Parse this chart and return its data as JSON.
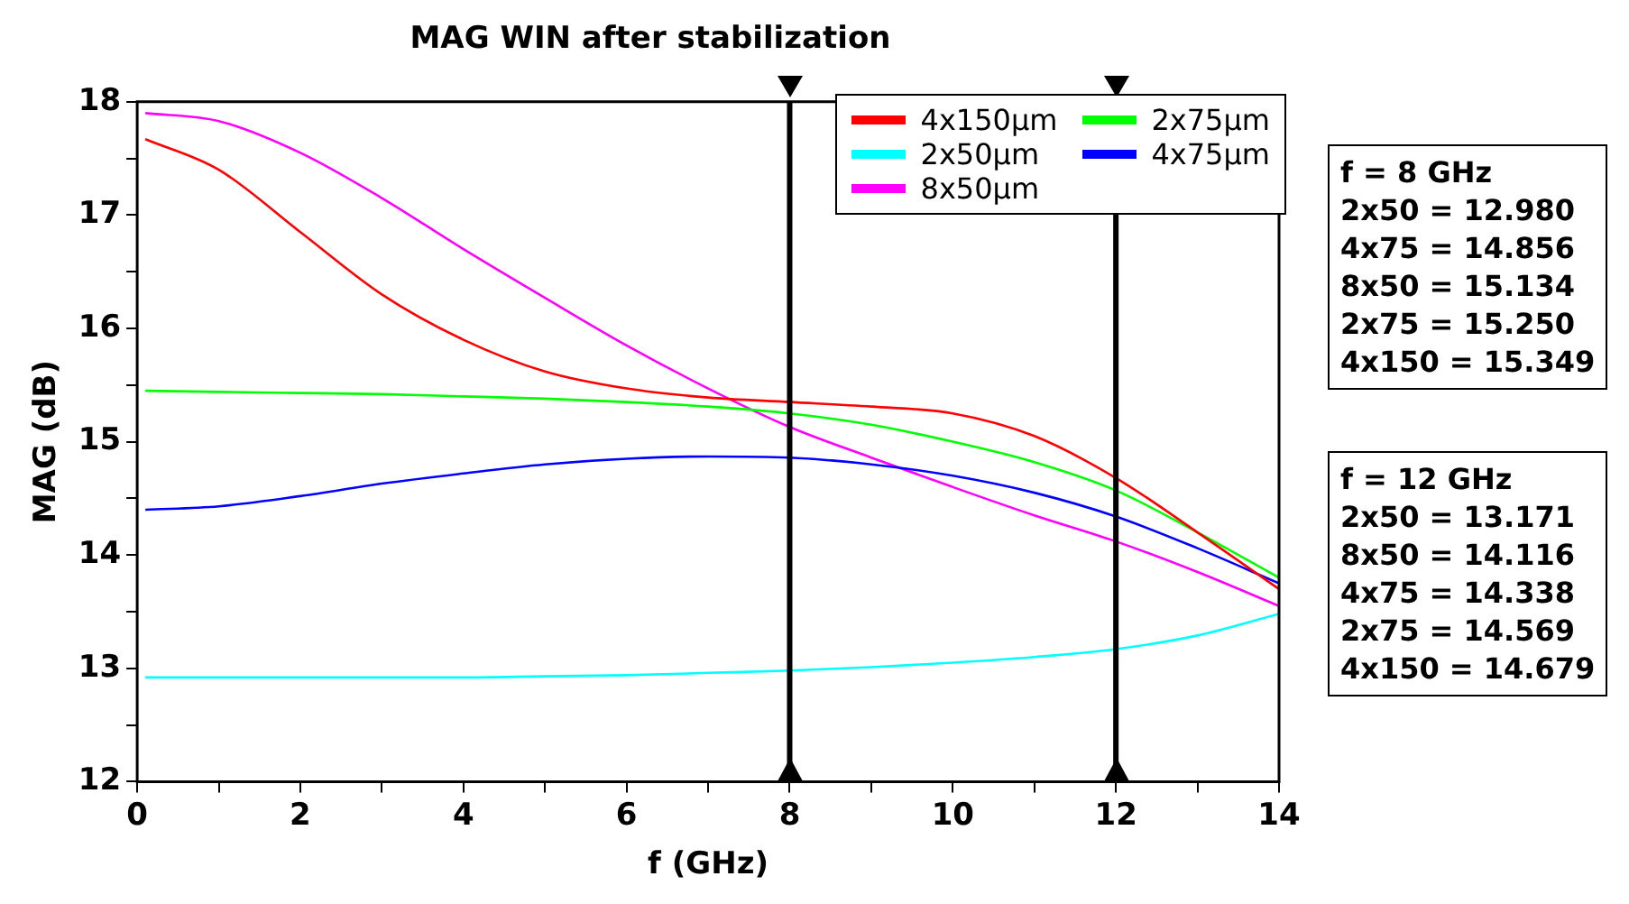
{
  "chart_data": {
    "type": "line",
    "title": "MAG WIN after stabilization",
    "xlabel": "f (GHz)",
    "ylabel": "MAG (dB)",
    "xlim": [
      0,
      14
    ],
    "xticks": [
      0,
      {
        "value": 1,
        "label": null
      },
      2,
      {
        "value": 3,
        "label": null
      },
      4,
      {
        "value": 5,
        "label": null
      },
      6,
      {
        "value": 7,
        "label": null
      },
      8,
      {
        "value": 9,
        "label": null
      },
      10,
      {
        "value": 11,
        "label": null
      },
      12,
      {
        "value": 13,
        "label": null
      },
      14
    ],
    "ylim": [
      12,
      18
    ],
    "yticks": [
      12,
      {
        "value": 12.5,
        "label": null
      },
      13,
      {
        "value": 13.5,
        "label": null
      },
      14,
      {
        "value": 14.5,
        "label": null
      },
      15,
      {
        "value": 15.5,
        "label": null
      },
      16,
      {
        "value": 16.5,
        "label": null
      },
      17,
      {
        "value": 17.5,
        "label": null
      },
      18
    ],
    "grid": false,
    "legend": "top right",
    "marker": "none",
    "line_style": "solid",
    "x": [
      0.1,
      1,
      2,
      3,
      4,
      5,
      6,
      7,
      8,
      9,
      10,
      11,
      12,
      13,
      14
    ],
    "series": [
      {
        "name": "4x150µm",
        "color": "#ff0000",
        "values": [
          17.67,
          17.4,
          16.85,
          16.3,
          15.9,
          15.62,
          15.47,
          15.39,
          15.35,
          15.31,
          15.25,
          15.05,
          14.68,
          14.2,
          13.7
        ]
      },
      {
        "name": "2x75µm",
        "color": "#00ff00",
        "values": [
          15.45,
          15.44,
          15.43,
          15.42,
          15.4,
          15.38,
          15.35,
          15.31,
          15.25,
          15.15,
          15.0,
          14.82,
          14.57,
          14.2,
          13.8
        ]
      },
      {
        "name": "2x50µm",
        "color": "#00ffff",
        "values": [
          12.92,
          12.92,
          12.92,
          12.92,
          12.92,
          12.93,
          12.94,
          12.96,
          12.98,
          13.01,
          13.05,
          13.1,
          13.17,
          13.29,
          13.48
        ]
      },
      {
        "name": "4x75µm",
        "color": "#0000ff",
        "values": [
          14.4,
          14.43,
          14.52,
          14.63,
          14.72,
          14.8,
          14.85,
          14.87,
          14.86,
          14.8,
          14.7,
          14.55,
          14.34,
          14.06,
          13.75
        ]
      },
      {
        "name": "8x50µm",
        "color": "#ff00ff",
        "values": [
          17.9,
          17.83,
          17.55,
          17.15,
          16.7,
          16.27,
          15.85,
          15.47,
          15.13,
          14.86,
          14.6,
          14.35,
          14.12,
          13.85,
          13.55
        ]
      }
    ],
    "ref_lines": [
      {
        "axis": "x",
        "value": 8,
        "color": "#000000"
      },
      {
        "axis": "x",
        "value": 12,
        "color": "#000000"
      }
    ],
    "annotations": [
      "f = 8 GHz\n2x50 = 12.980\n4x75 = 14.856\n8x50 = 15.134\n2x75 = 15.250\n4x150 = 15.349",
      "f = 12 GHz\n2x50 = 13.171\n8x50 = 14.116\n4x75 = 14.338\n2x75 = 14.569\n4x150 = 14.679"
    ]
  }
}
